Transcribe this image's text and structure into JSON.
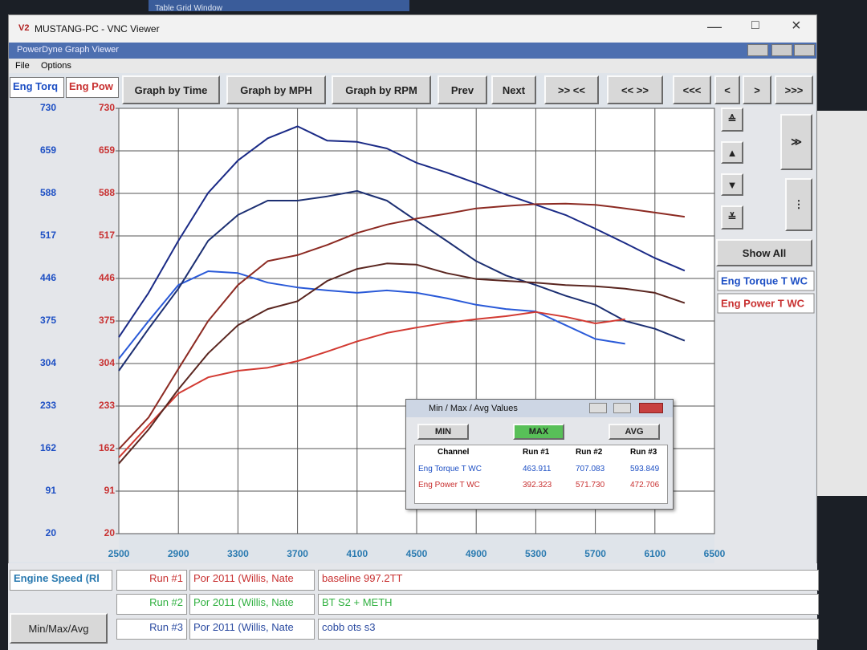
{
  "window": {
    "background_title": "Table Grid Window",
    "title": "MUSTANG-PC - VNC Viewer",
    "app_title": "PowerDyne Graph Viewer",
    "menu": [
      "File",
      "Options"
    ]
  },
  "toolbar": {
    "axis_tabs": [
      "Eng Torq",
      "Eng Pow"
    ],
    "buttons": [
      "Graph by Time",
      "Graph by MPH",
      "Graph by RPM",
      "Prev",
      "Next",
      ">> <<",
      "<< >>",
      "<<<",
      "<",
      ">",
      ">>>"
    ],
    "show_all": "Show All"
  },
  "chart_data": {
    "type": "line",
    "x": [
      2500,
      2700,
      2900,
      3100,
      3300,
      3500,
      3700,
      3900,
      4100,
      4300,
      4500,
      4700,
      4900,
      5100,
      5300,
      5500,
      5700,
      5900,
      6100,
      6300,
      6500
    ],
    "xlim": [
      2500,
      6500
    ],
    "xticks": [
      2500,
      2900,
      3300,
      3700,
      4100,
      4500,
      4900,
      5300,
      5700,
      6100,
      6500
    ],
    "ylim": [
      20,
      730
    ],
    "yticks": [
      20,
      91,
      162,
      233,
      304,
      375,
      446,
      517,
      588,
      659,
      730
    ],
    "y2lim": [
      20,
      730
    ],
    "y2ticks": [
      20,
      91,
      162,
      233,
      304,
      375,
      446,
      517,
      588,
      659,
      730
    ],
    "grid": true,
    "channels": [
      {
        "name": "Eng Torque T WC",
        "color": "#1d4fc4"
      },
      {
        "name": "Eng Power T WC",
        "color": "#c83030"
      }
    ],
    "series": [
      {
        "color": "#2a5ad8",
        "values": [
          312,
          375,
          435,
          458,
          455,
          439,
          431,
          426,
          422,
          426,
          422,
          413,
          402,
          395,
          391,
          368,
          345,
          337,
          null,
          null,
          null
        ]
      },
      {
        "color": "#1a2a86",
        "values": [
          348,
          422,
          509,
          589,
          643,
          680,
          700,
          676,
          674,
          663,
          639,
          623,
          605,
          586,
          569,
          552,
          529,
          505,
          480,
          459,
          null
        ]
      },
      {
        "color": "#1c2f72",
        "values": [
          292,
          362,
          429,
          509,
          552,
          576,
          576,
          583,
          592,
          576,
          542,
          509,
          475,
          451,
          435,
          417,
          402,
          375,
          362,
          342,
          null
        ]
      },
      {
        "color": "#d23a32",
        "axis": "y2",
        "values": [
          147,
          201,
          254,
          281,
          292,
          297,
          308,
          324,
          341,
          355,
          364,
          372,
          378,
          383,
          390,
          382,
          371,
          378,
          null,
          null,
          null
        ]
      },
      {
        "color": "#8c2a22",
        "axis": "y2",
        "values": [
          161,
          214,
          295,
          375,
          435,
          475,
          485,
          502,
          522,
          536,
          546,
          554,
          563,
          567,
          570,
          571,
          569,
          563,
          556,
          549,
          null
        ]
      },
      {
        "color": "#5a2620",
        "axis": "y2",
        "values": [
          137,
          194,
          261,
          321,
          368,
          395,
          408,
          442,
          462,
          471,
          469,
          455,
          445,
          442,
          439,
          435,
          433,
          429,
          422,
          405,
          null
        ]
      }
    ]
  },
  "popup": {
    "title": "Min / Max / Avg Values",
    "buttons": [
      "MIN",
      "MAX",
      "AVG"
    ],
    "columns": [
      "Channel",
      "Run #1",
      "Run #2",
      "Run #3"
    ],
    "rows": [
      [
        "Eng Torque T WC",
        "463.911",
        "707.083",
        "593.849"
      ],
      [
        "Eng Power T WC",
        "392.323",
        "571.730",
        "472.706"
      ]
    ]
  },
  "runs": {
    "header": "Engine Speed (Rl",
    "rows": [
      [
        "Run #1",
        "Por 2011 (Willis, Nate",
        "baseline 997.2TT"
      ],
      [
        "Run #2",
        "Por 2011 (Willis, Nate",
        "BT S2 + METH"
      ],
      [
        "Run #3",
        "Por 2011 (Willis, Nate",
        "cobb ots s3"
      ]
    ],
    "button": "Min/Max/Avg"
  }
}
